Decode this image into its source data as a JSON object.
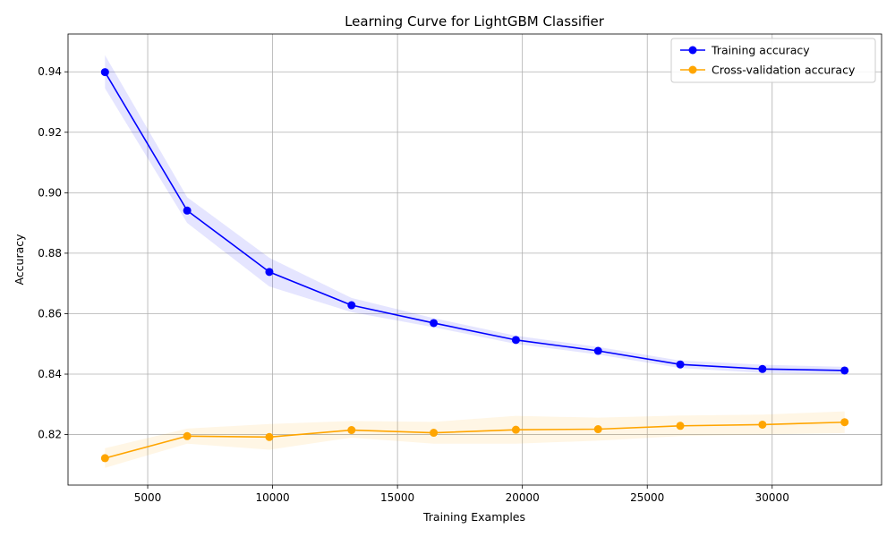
{
  "chart_data": {
    "type": "line",
    "title": "Learning Curve for LightGBM Classifier",
    "xlabel": "Training Examples",
    "ylabel": "Accuracy",
    "x": [
      3290,
      6580,
      9870,
      13160,
      16450,
      19740,
      23030,
      26320,
      29610,
      32900
    ],
    "xlim": [
      1810,
      34380
    ],
    "ylim": [
      0.8033,
      0.9525
    ],
    "xticks": [
      5000,
      10000,
      15000,
      20000,
      25000,
      30000
    ],
    "yticks": [
      0.82,
      0.84,
      0.86,
      0.88,
      0.9,
      0.92,
      0.94
    ],
    "ytick_labels": [
      "0.82",
      "0.84",
      "0.86",
      "0.88",
      "0.90",
      "0.92",
      "0.94"
    ],
    "grid": true,
    "legend_position": "top-right",
    "series": [
      {
        "name": "Training accuracy",
        "color": "#0000ff",
        "band_color": "#0000ff",
        "values": [
          0.9399,
          0.8941,
          0.8738,
          0.8628,
          0.8569,
          0.8513,
          0.8477,
          0.8432,
          0.8417,
          0.8412
        ],
        "band_lower": [
          0.9345,
          0.89,
          0.869,
          0.8605,
          0.8555,
          0.85,
          0.8465,
          0.842,
          0.8404,
          0.84
        ],
        "band_upper": [
          0.9455,
          0.8985,
          0.8785,
          0.8652,
          0.8585,
          0.8527,
          0.849,
          0.8445,
          0.8431,
          0.8424
        ]
      },
      {
        "name": "Cross-validation accuracy",
        "color": "#ffa500",
        "band_color": "#ffa500",
        "values": [
          0.8122,
          0.8195,
          0.8192,
          0.8215,
          0.8206,
          0.8216,
          0.8218,
          0.8229,
          0.8233,
          0.8241
        ],
        "band_lower": [
          0.809,
          0.817,
          0.815,
          0.819,
          0.817,
          0.817,
          0.818,
          0.8195,
          0.82,
          0.8205
        ],
        "band_upper": [
          0.8155,
          0.822,
          0.8235,
          0.8245,
          0.8242,
          0.8262,
          0.8256,
          0.8263,
          0.8266,
          0.8277
        ]
      }
    ]
  }
}
